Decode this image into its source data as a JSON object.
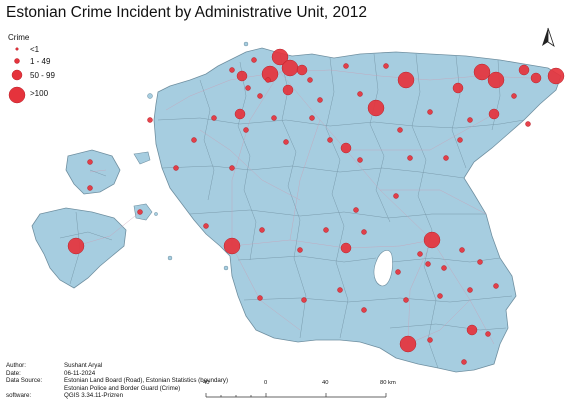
{
  "title": "Estonian Crime Incident by Administrative Unit, 2012",
  "legend": {
    "title": "Crime",
    "items": [
      {
        "label": "<1",
        "radius": 1.3
      },
      {
        "label": "1 - 49",
        "radius": 2.5
      },
      {
        "label": "50 - 99",
        "radius": 5
      },
      {
        "label": ">100",
        "radius": 8
      }
    ]
  },
  "colors": {
    "land": "#a6cde0",
    "boundary": "#6f8fa0",
    "road": "#c9a0b6",
    "symbol": "#e5333c",
    "symbol_edge": "#b8222b"
  },
  "north_arrow": "north-arrow-icon",
  "credits": [
    {
      "key": "Author:",
      "value": "Sushant Aryal"
    },
    {
      "key": "Date:",
      "value": "06-11-2024"
    },
    {
      "key": "Data Source:",
      "value": "Estonian Land Board (Road), Estonian Statistics (boundary)"
    },
    {
      "key": "",
      "value": "Estonian Police and Border Guard (Crime)"
    },
    {
      "key": "software:",
      "value": "QGIS 3.34.11-Prizren"
    }
  ],
  "scale_bar": {
    "labels": [
      "40",
      "0",
      "40",
      "80 km"
    ],
    "km_values": [
      -40,
      0,
      40,
      80
    ]
  }
}
